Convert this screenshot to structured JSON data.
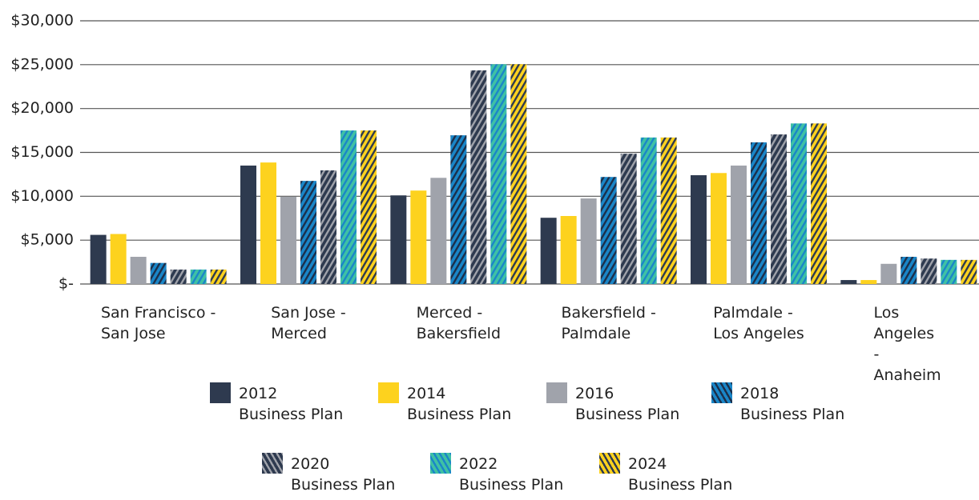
{
  "chart_data": {
    "type": "bar",
    "categories": [
      "San Francisco -\nSan Jose",
      "San Jose -\nMerced",
      "Merced -\nBakersfield",
      "Bakersfield -\nPalmdale",
      "Palmdale -\nLos Angeles",
      "Los Angeles -\nAnaheim"
    ],
    "series": [
      {
        "name": "2012\nBusiness Plan",
        "color": "#2e3a4f",
        "values": [
          5600,
          13500,
          10100,
          7550,
          12400,
          450
        ]
      },
      {
        "name": "2014\nBusiness Plan",
        "color": "#fdd21e",
        "values": [
          5700,
          13850,
          10650,
          7750,
          12650,
          450
        ]
      },
      {
        "name": "2016\nBusiness Plan",
        "color": "#a0a3ab",
        "values": [
          3100,
          9950,
          12100,
          9750,
          13500,
          2300
        ]
      },
      {
        "name": "2018\nBusiness Plan",
        "color": "#1a86c8",
        "hatch": "#1c2f4a",
        "values": [
          2400,
          11750,
          16950,
          12200,
          16150,
          3100
        ]
      },
      {
        "name": "2020\nBusiness Plan",
        "color": "#2e3a4f",
        "hatch": "#a0a3ab",
        "values": [
          1650,
          12950,
          24350,
          14850,
          17050,
          2900
        ]
      },
      {
        "name": "2022\nBusiness Plan",
        "color": "#3fc1a4",
        "hatch": "#1a86c8",
        "values": [
          1650,
          17500,
          25050,
          16700,
          18300,
          2750
        ]
      },
      {
        "name": "2024\nBusiness Plan",
        "color": "#fdd21e",
        "hatch": "#2e3a4f",
        "values": [
          1650,
          17500,
          25050,
          16700,
          18300,
          2750
        ]
      }
    ],
    "ylim": [
      0,
      30000
    ],
    "yticks": [
      {
        "value": 0,
        "label": "$-"
      },
      {
        "value": 5000,
        "label": "$5,000"
      },
      {
        "value": 10000,
        "label": "$10,000"
      },
      {
        "value": 15000,
        "label": "$15,000"
      },
      {
        "value": 20000,
        "label": "$20,000"
      },
      {
        "value": 25000,
        "label": "$25,000"
      },
      {
        "value": 30000,
        "label": "$30,000"
      }
    ],
    "grid": true
  }
}
